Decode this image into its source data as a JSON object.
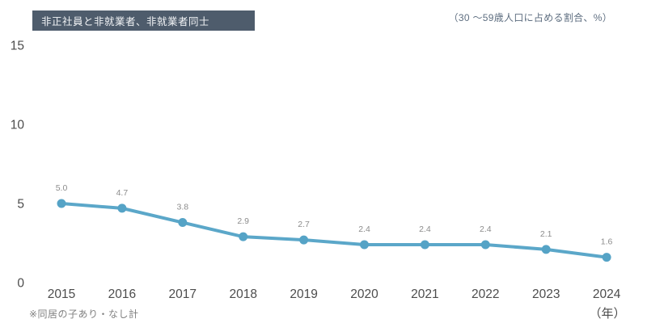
{
  "chart_data": {
    "type": "line",
    "title": "非正社員と非就業者、非就業者同士",
    "unit_note": "（30 ～59歳人口に占める割合、%）",
    "categories": [
      "2015",
      "2016",
      "2017",
      "2018",
      "2019",
      "2020",
      "2021",
      "2022",
      "2023",
      "2024"
    ],
    "values": [
      5.0,
      4.7,
      3.8,
      2.9,
      2.7,
      2.4,
      2.4,
      2.4,
      2.1,
      1.6
    ],
    "value_labels": [
      "5.0",
      "4.7",
      "3.8",
      "2.9",
      "2.7",
      "2.4",
      "2.4",
      "2.4",
      "2.1",
      "1.6"
    ],
    "y_ticks": [
      "0",
      "5",
      "10",
      "15"
    ],
    "ylim": [
      0,
      15
    ],
    "grid": false,
    "legend": "none",
    "x_axis_unit": "（年）",
    "footnote": "※同居の子あり・なし計",
    "colors": {
      "line": "#5ba7c9",
      "point": "#55a3c6",
      "title_bg": "#4e5c6c",
      "title_text": "#f2f4f6",
      "tick_text": "#4c4c4c",
      "value_label_text": "#8c8c8c",
      "unit_note_text": "#5e6e80",
      "footnote_text": "#808080"
    }
  }
}
